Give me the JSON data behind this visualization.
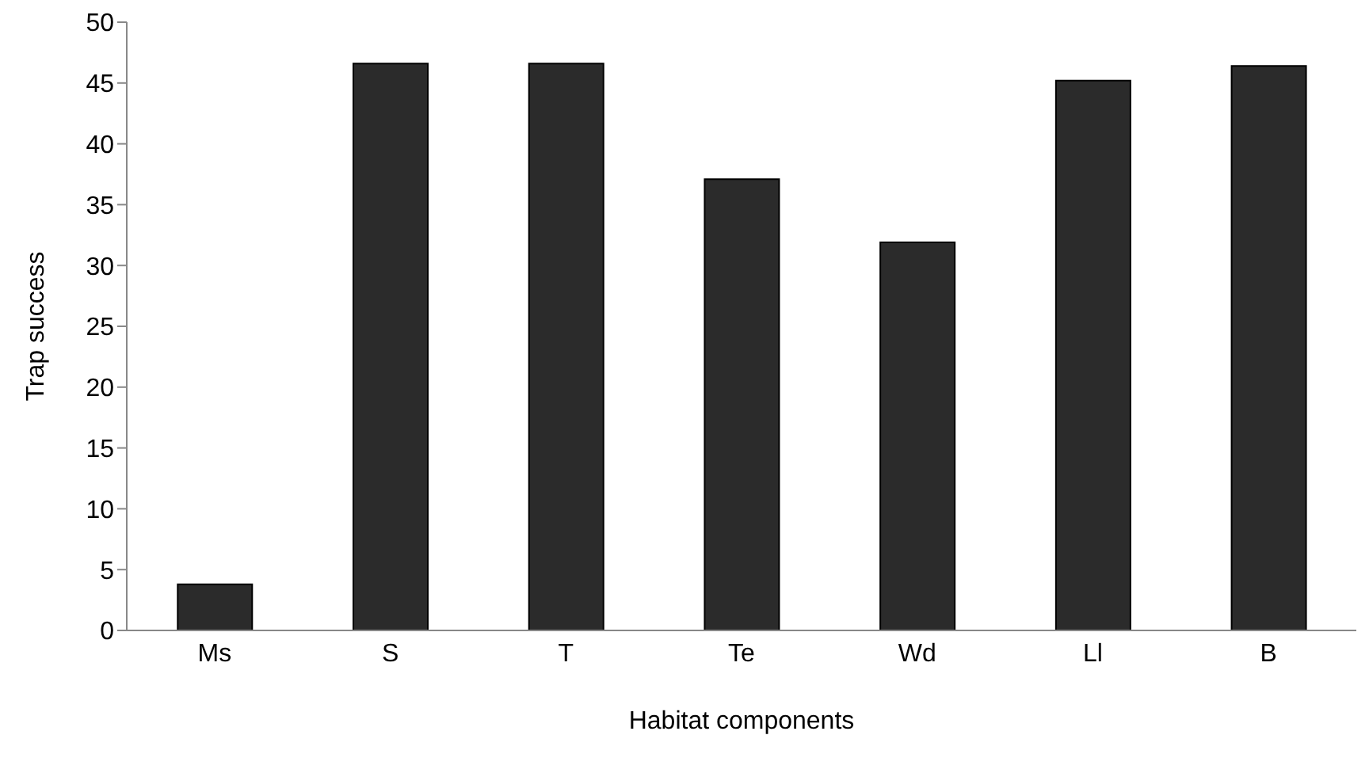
{
  "chart_data": {
    "type": "bar",
    "xlabel": "Habitat components",
    "ylabel": "Trap success",
    "categories": [
      "Ms",
      "S",
      "T",
      "Te",
      "Wd",
      "Ll",
      "B"
    ],
    "values": [
      3.8,
      46.6,
      46.6,
      37.1,
      31.9,
      45.2,
      46.4
    ],
    "color": "#2b2b2b",
    "ylim": [
      0,
      50
    ],
    "yticks": [
      0,
      5,
      10,
      15,
      20,
      25,
      30,
      35,
      40,
      45,
      50
    ],
    "grid": false,
    "legend": false
  }
}
